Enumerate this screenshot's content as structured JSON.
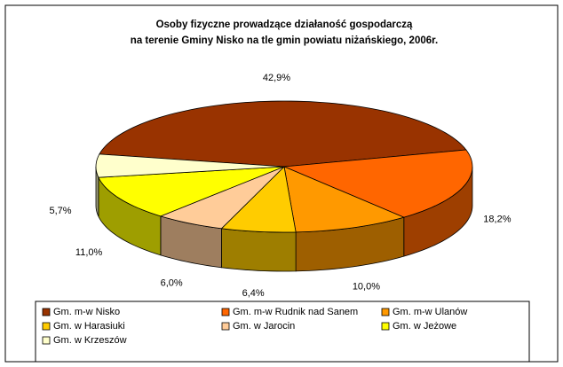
{
  "chart_data": {
    "type": "pie3d",
    "title": [
      "Osoby fizyczne prowadzące działaność gospodarczą",
      "na terenie Gminy Nisko na tle gmin powiatu niżańskiego, 2006r."
    ],
    "categories": [
      "Gm. m-w Nisko",
      "Gm. m-w Rudnik nad Sanem",
      "Gm. m-w Ulanów",
      "Gm. w Harasiuki",
      "Gm. w Jarocin",
      "Gm. w Jeżowe",
      "Gm. w Krzeszów"
    ],
    "values": [
      42.9,
      18.2,
      10.0,
      6.4,
      6.0,
      11.0,
      5.7
    ],
    "value_labels": [
      "42,9%",
      "18,2%",
      "10,0%",
      "6,4%",
      "6,0%",
      "11,0%",
      "5,7%"
    ],
    "colors": [
      "#993300",
      "#ff6600",
      "#ff9900",
      "#ffcc00",
      "#ffcc99",
      "#ffff00",
      "#ffffcc"
    ],
    "legend": "bottom"
  }
}
